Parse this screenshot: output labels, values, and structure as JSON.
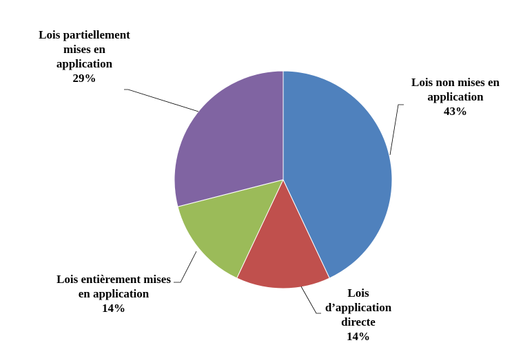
{
  "chart_data": {
    "type": "pie",
    "categories": [
      "Lois non mises en application",
      "Lois d’application directe",
      "Lois entièrement mises en application",
      "Lois partiellement mises en application"
    ],
    "values": [
      43,
      14,
      14,
      29
    ],
    "value_labels": [
      "43%",
      "14%",
      "14%",
      "29%"
    ],
    "colors": [
      "#4f81bd",
      "#c0504d",
      "#9bbb59",
      "#8064a2"
    ]
  }
}
